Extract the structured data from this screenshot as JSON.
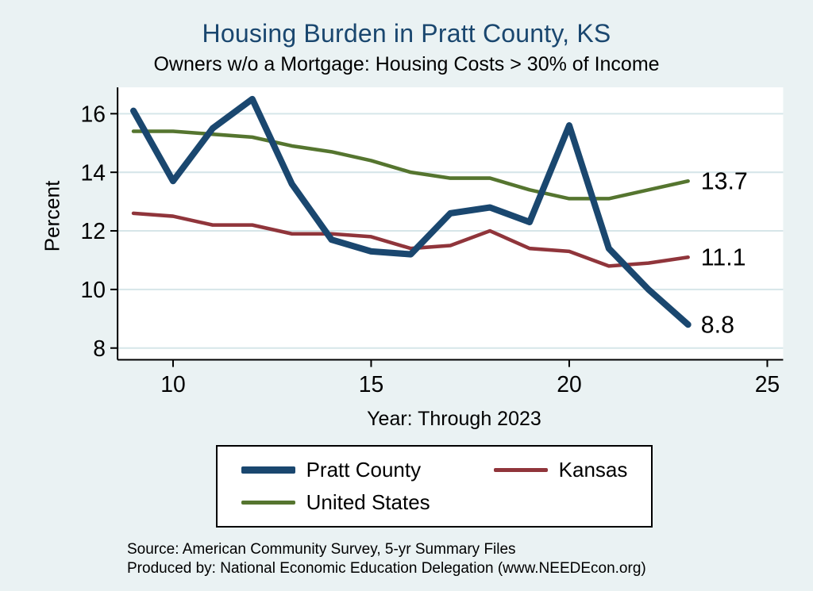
{
  "chart_data": {
    "type": "line",
    "title": "Housing Burden in Pratt County, KS",
    "subtitle": "Owners w/o a Mortgage: Housing Costs > 30% of Income",
    "xlabel": "Year: Through 2023",
    "ylabel": "Percent",
    "x": [
      9,
      10,
      11,
      12,
      13,
      14,
      15,
      16,
      17,
      18,
      19,
      20,
      21,
      22,
      23
    ],
    "x_tick_values": [
      10,
      15,
      20,
      25
    ],
    "x_tick_labels": [
      "10",
      "15",
      "20",
      "25"
    ],
    "y_ticks": [
      8,
      10,
      12,
      14,
      16
    ],
    "xlim": [
      8.6,
      25.4
    ],
    "ylim": [
      7.6,
      16.9
    ],
    "grid": true,
    "legend_position": "bottom",
    "background_color": "#eaf2f3",
    "plot_background_color": "#ffffff",
    "gridline_color": "#d6e6e9",
    "series": [
      {
        "name": "Pratt County",
        "color": "#1a476f",
        "width": 8,
        "end_label": "8.8",
        "values": [
          16.1,
          13.7,
          15.5,
          16.5,
          13.6,
          11.7,
          11.3,
          11.2,
          12.6,
          12.8,
          12.3,
          15.6,
          11.4,
          10.0,
          8.8
        ]
      },
      {
        "name": "Kansas",
        "color": "#90353b",
        "width": 4.5,
        "end_label": "11.1",
        "values": [
          12.6,
          12.5,
          12.2,
          12.2,
          11.9,
          11.9,
          11.8,
          11.4,
          11.5,
          12.0,
          11.4,
          11.3,
          10.8,
          10.9,
          11.1
        ]
      },
      {
        "name": "United States",
        "color": "#55752f",
        "width": 4.5,
        "end_label": "13.7",
        "values": [
          15.4,
          15.4,
          15.3,
          15.2,
          14.9,
          14.7,
          14.4,
          14.0,
          13.8,
          13.8,
          13.4,
          13.1,
          13.1,
          13.4,
          13.7
        ]
      }
    ]
  },
  "notes": {
    "source": "Source: American Community Survey, 5-yr Summary Files",
    "produced_by": "Produced by: National Economic Education Delegation (www.NEEDEcon.org)"
  }
}
